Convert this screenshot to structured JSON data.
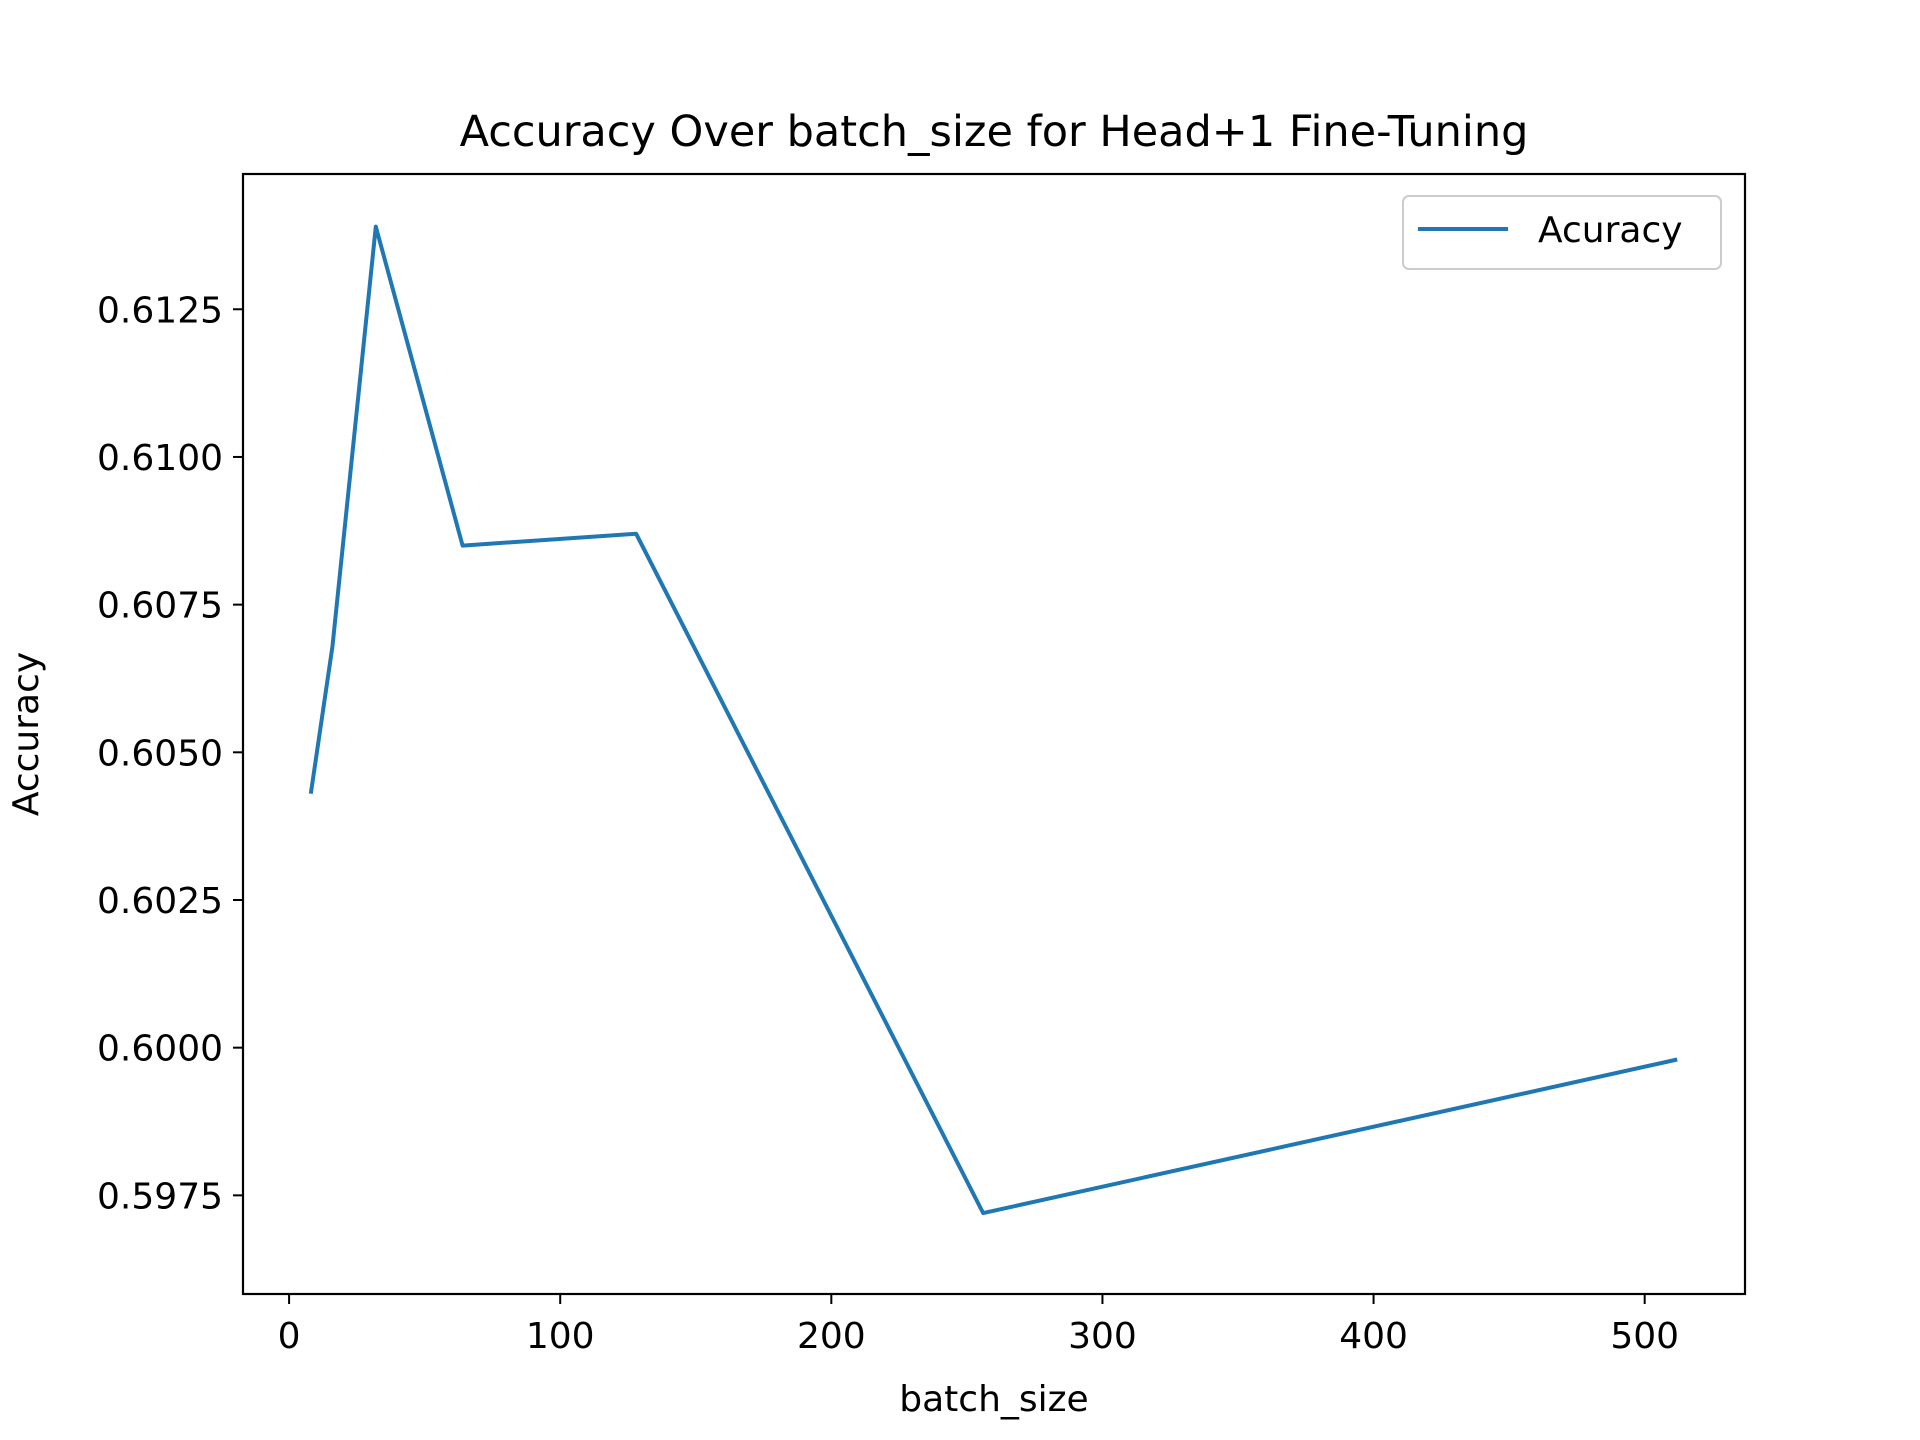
{
  "chart_data": {
    "type": "line",
    "title": "Accuracy Over batch_size for Head+1 Fine-Tuning",
    "xlabel": "batch_size",
    "ylabel": "Accuracy",
    "xlim": [
      -17,
      537
    ],
    "ylim": [
      0.59583,
      0.61479
    ],
    "xticks": [
      0,
      100,
      200,
      300,
      400,
      500
    ],
    "yticks": [
      0.5975,
      0.6,
      0.6025,
      0.605,
      0.6075,
      0.61,
      0.6125
    ],
    "xtick_labels": [
      "0",
      "100",
      "200",
      "300",
      "400",
      "500"
    ],
    "ytick_labels": [
      "0.5975",
      "0.6000",
      "0.6025",
      "0.6050",
      "0.6075",
      "0.6100",
      "0.6125"
    ],
    "grid": false,
    "legend_position": "top-right",
    "series": [
      {
        "name": "Acuracy",
        "color": "#1f77b4",
        "x": [
          8,
          16,
          32,
          64,
          128,
          256,
          512
        ],
        "y": [
          0.6043,
          0.6068,
          0.6139,
          0.6085,
          0.6087,
          0.5972,
          0.5998
        ]
      }
    ]
  }
}
